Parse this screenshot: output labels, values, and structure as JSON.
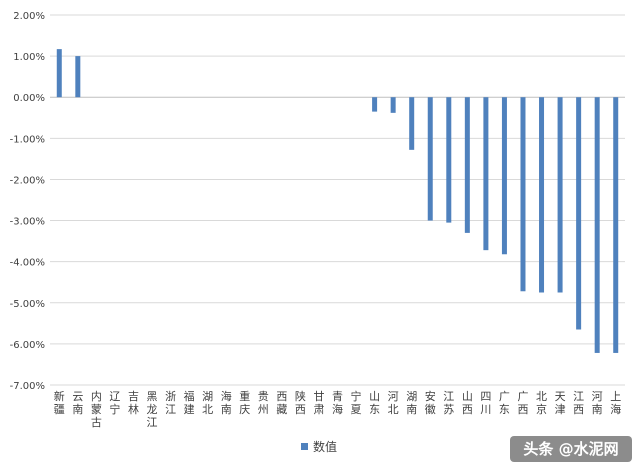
{
  "chart_data": {
    "type": "bar",
    "categories": [
      "新疆",
      "云南",
      "内蒙古",
      "辽宁",
      "吉林",
      "黑龙江",
      "浙江",
      "福建",
      "湖北",
      "海南",
      "重庆",
      "贵州",
      "西藏",
      "陕西",
      "甘肃",
      "青海",
      "宁夏",
      "山东",
      "河北",
      "湖南",
      "安徽",
      "江苏",
      "山西",
      "四川",
      "广东",
      "广西",
      "北京",
      "天津",
      "江西",
      "河南",
      "上海"
    ],
    "series": [
      {
        "name": "数值",
        "color": "#4F81BD",
        "values": [
          1.17,
          1.0,
          0,
          0,
          0,
          0,
          0,
          0,
          0,
          0,
          0,
          0,
          0,
          0,
          0,
          0,
          0,
          -0.35,
          -0.38,
          -1.28,
          -3.0,
          -3.05,
          -3.3,
          -3.72,
          -3.82,
          -4.72,
          -4.75,
          -4.75,
          -5.65,
          -6.22,
          -6.22
        ]
      }
    ],
    "y_ticks": [
      "2.00%",
      "1.00%",
      "0.00%",
      "-1.00%",
      "-2.00%",
      "-3.00%",
      "-4.00%",
      "-5.00%",
      "-6.00%",
      "-7.00%"
    ],
    "ylim": [
      -7,
      2
    ],
    "grid": true,
    "legend_position": "bottom"
  },
  "watermark": {
    "text": "头条 @水泥网"
  }
}
